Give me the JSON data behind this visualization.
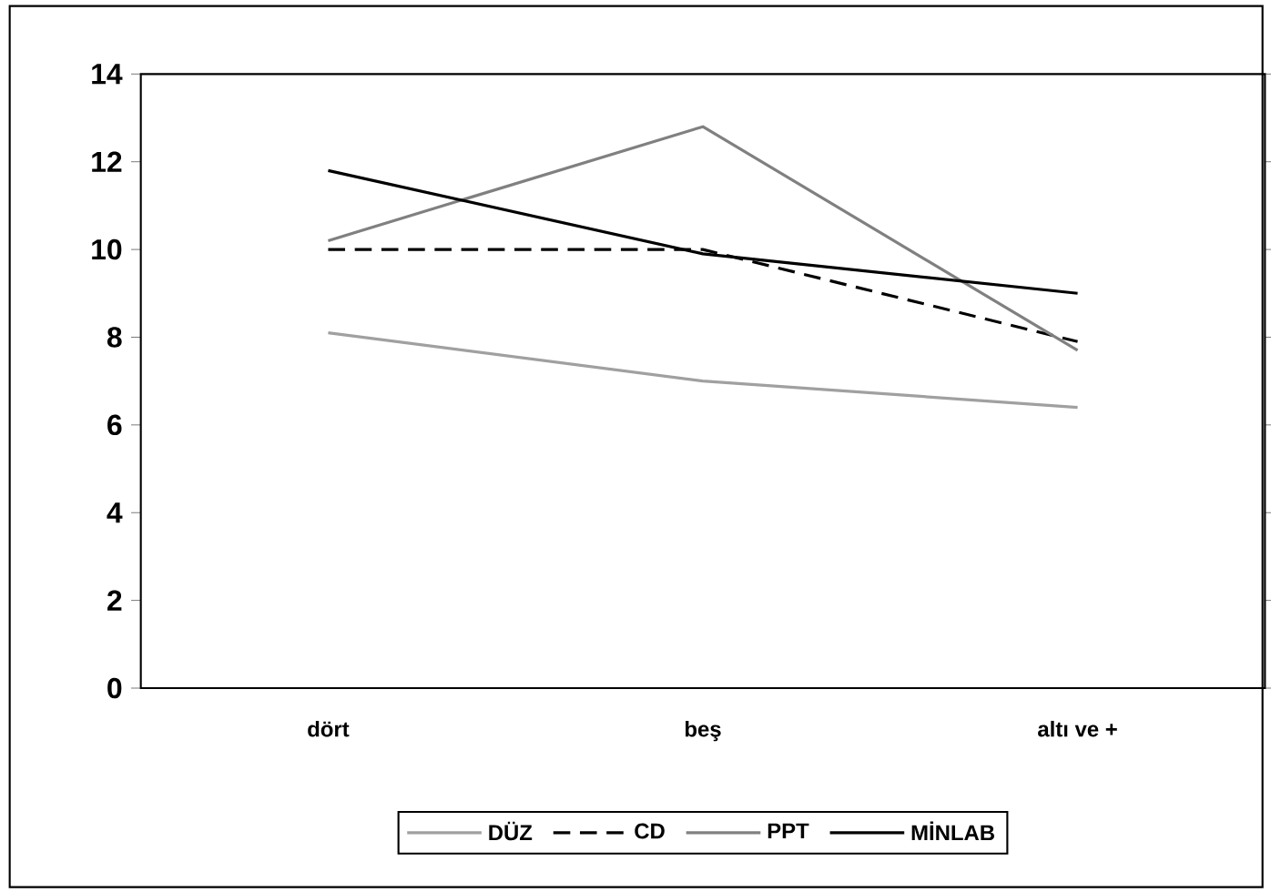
{
  "chart_data": {
    "type": "line",
    "categories": [
      "dört",
      "beş",
      "altı ve +"
    ],
    "series": [
      {
        "name": "DÜZ",
        "color": "#a0a0a0",
        "values": [
          8.1,
          7.0,
          6.4
        ],
        "line_style": "solid"
      },
      {
        "name": "CD",
        "color": "#000000",
        "values": [
          10.0,
          10.0,
          7.9
        ],
        "line_style": "dashed"
      },
      {
        "name": "PPT",
        "color": "#808080",
        "values": [
          10.2,
          12.8,
          7.7
        ],
        "line_style": "solid"
      },
      {
        "name": "MİNLAB",
        "color": "#000000",
        "values": [
          11.8,
          9.9,
          9.0
        ],
        "line_style": "solid"
      }
    ],
    "ylim": [
      0,
      14
    ],
    "yticks": [
      0,
      2,
      4,
      6,
      8,
      10,
      12,
      14
    ],
    "grid": false,
    "legend": "bottom",
    "marker": "none"
  }
}
